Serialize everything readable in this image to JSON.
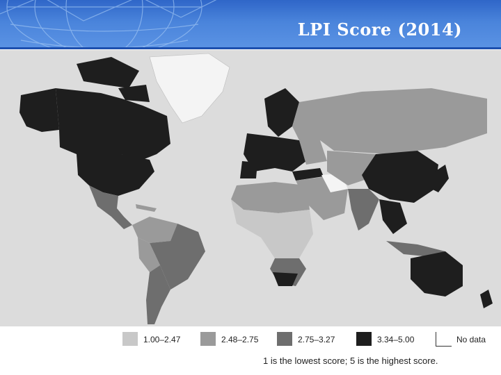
{
  "slide": {
    "title": "LPI Score (2014)"
  },
  "legend": {
    "items": [
      {
        "label": "1.00–2.47",
        "color": "#c8c8c8"
      },
      {
        "label": "2.48–2.75",
        "color": "#9a9a9a"
      },
      {
        "label": "2.75–3.27",
        "color": "#6e6e6e"
      },
      {
        "label": "3.34–5.00",
        "color": "#1e1e1e"
      },
      {
        "label": "No data",
        "color": "#ffffff"
      }
    ],
    "note": "1 is the lowest score; 5 is the highest score."
  },
  "colors": {
    "ocean": "#dcdcdc",
    "header_blue": "#3f78d4"
  }
}
